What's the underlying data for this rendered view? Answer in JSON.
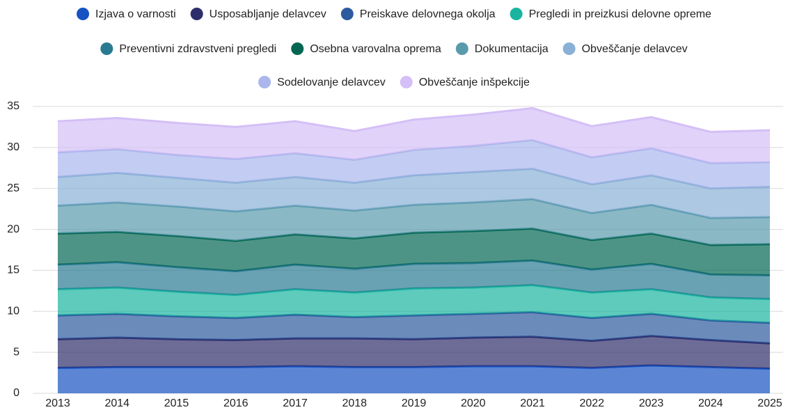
{
  "chart_data": {
    "type": "stacked_area",
    "categories": [
      "2013",
      "2014",
      "2015",
      "2016",
      "2017",
      "2018",
      "2019",
      "2020",
      "2021",
      "2022",
      "2023",
      "2024",
      "2025"
    ],
    "ylim": [
      0,
      35
    ],
    "yticks": [
      0,
      5,
      10,
      15,
      20,
      25,
      30,
      35
    ],
    "grid": true,
    "legend": "top",
    "series": [
      {
        "name": "Izjava o varnosti",
        "color": "#1752c2",
        "values": [
          3.1,
          3.2,
          3.2,
          3.2,
          3.3,
          3.2,
          3.2,
          3.3,
          3.3,
          3.1,
          3.4,
          3.2,
          3.0
        ]
      },
      {
        "name": "Usposabljanje delavcev",
        "color": "#2e2d6b",
        "values": [
          3.5,
          3.6,
          3.4,
          3.3,
          3.4,
          3.5,
          3.4,
          3.5,
          3.6,
          3.3,
          3.6,
          3.3,
          3.1
        ]
      },
      {
        "name": "Preiskave delovnega okolja",
        "color": "#2c5a9e",
        "values": [
          2.9,
          2.9,
          2.8,
          2.7,
          2.9,
          2.6,
          2.9,
          2.9,
          3.0,
          2.8,
          2.7,
          2.4,
          2.5
        ]
      },
      {
        "name": "Pregledi in preizkusi delovne opreme",
        "color": "#1ab5a0",
        "values": [
          3.2,
          3.2,
          3.0,
          2.8,
          3.1,
          3.0,
          3.3,
          3.2,
          3.3,
          3.1,
          3.0,
          2.8,
          2.9
        ]
      },
      {
        "name": "Preventivni zdravstveni pregledi",
        "color": "#2a7a92",
        "values": [
          3.0,
          3.1,
          3.0,
          2.9,
          3.0,
          2.9,
          3.0,
          3.0,
          3.0,
          2.8,
          3.1,
          2.8,
          2.9
        ]
      },
      {
        "name": "Osebna varovalna oprema",
        "color": "#036652",
        "values": [
          3.8,
          3.7,
          3.8,
          3.7,
          3.7,
          3.7,
          3.8,
          3.9,
          3.9,
          3.6,
          3.7,
          3.6,
          3.8
        ]
      },
      {
        "name": "Dokumentacija",
        "color": "#5a9aad",
        "values": [
          3.4,
          3.6,
          3.6,
          3.6,
          3.5,
          3.4,
          3.4,
          3.5,
          3.6,
          3.3,
          3.5,
          3.3,
          3.3
        ]
      },
      {
        "name": "Obveščanje delavcev",
        "color": "#8ab0d6",
        "values": [
          3.5,
          3.6,
          3.5,
          3.5,
          3.5,
          3.4,
          3.6,
          3.7,
          3.7,
          3.5,
          3.6,
          3.6,
          3.7
        ]
      },
      {
        "name": "Sodelovanje delavcev",
        "color": "#aab6ec",
        "values": [
          3.0,
          2.9,
          2.8,
          2.9,
          2.9,
          2.8,
          3.1,
          3.2,
          3.5,
          3.3,
          3.3,
          3.1,
          3.0
        ]
      },
      {
        "name": "Obveščanje inšpekcije",
        "color": "#d4bff7",
        "values": [
          3.8,
          3.8,
          3.9,
          3.9,
          3.9,
          3.5,
          3.7,
          3.8,
          3.9,
          3.8,
          3.8,
          3.8,
          3.9
        ]
      }
    ]
  }
}
